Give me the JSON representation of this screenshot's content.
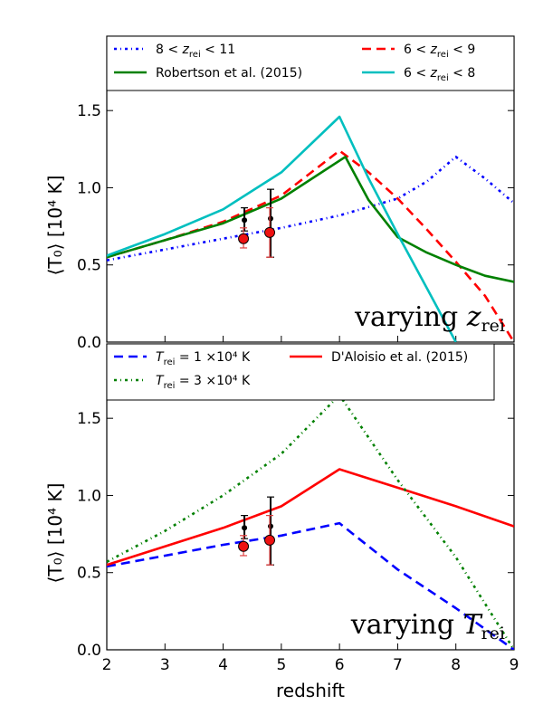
{
  "chart_data": [
    {
      "type": "line",
      "panel": "top",
      "ylabel": "⟨T₀⟩  [10⁴ K]",
      "xlim": [
        2,
        9
      ],
      "ylim": [
        0,
        1.63
      ],
      "yticks": [
        "0.0",
        "0.5",
        "1.0",
        "1.5"
      ],
      "annotation": "varying z_rei",
      "annotation_main": "varying ",
      "annotation_var": "z",
      "annotation_sub": "rei",
      "legend_position": "top",
      "series": [
        {
          "name": "8 < z_rei < 11",
          "legend": {
            "pre": "8 < ",
            "var": "z",
            "sub": "rei",
            "post": " < 11"
          },
          "style": "dashdot",
          "color": "#0000ff",
          "x": [
            2,
            3,
            4,
            5,
            6,
            7,
            7.5,
            8,
            8.5,
            9
          ],
          "y": [
            0.53,
            0.6,
            0.67,
            0.74,
            0.82,
            0.93,
            1.04,
            1.2,
            1.06,
            0.9
          ]
        },
        {
          "name": "6 < z_rei < 9",
          "legend": {
            "pre": "6 < ",
            "var": "z",
            "sub": "rei",
            "post": " < 9"
          },
          "style": "dashed",
          "color": "#ff0000",
          "x": [
            2,
            3,
            4,
            5,
            6,
            6.5,
            7,
            7.5,
            8,
            8.5,
            9
          ],
          "y": [
            0.55,
            0.66,
            0.78,
            0.95,
            1.24,
            1.1,
            0.93,
            0.73,
            0.52,
            0.3,
            0.0
          ]
        },
        {
          "name": "Robertson et al. (2015)",
          "style": "solid",
          "color": "#008000",
          "x": [
            2,
            3,
            4,
            5,
            6.1,
            6.5,
            7,
            7.5,
            8,
            8.5,
            9
          ],
          "y": [
            0.55,
            0.66,
            0.77,
            0.93,
            1.2,
            0.92,
            0.68,
            0.58,
            0.5,
            0.43,
            0.39
          ]
        },
        {
          "name": "6 < z_rei < 8",
          "legend": {
            "pre": "6 < ",
            "var": "z",
            "sub": "rei",
            "post": " < 8"
          },
          "style": "solid",
          "color": "#00bfbf",
          "x": [
            2,
            3,
            4,
            5,
            6,
            6.5,
            7,
            7.5,
            8
          ],
          "y": [
            0.56,
            0.7,
            0.86,
            1.1,
            1.46,
            1.06,
            0.7,
            0.35,
            0.0
          ]
        }
      ],
      "legend_order": [
        0,
        1,
        2,
        3
      ],
      "observations": [
        {
          "marker": "black-dot",
          "x": [
            4.35,
            4.8
          ],
          "y": [
            0.79,
            0.8
          ],
          "err_lo": [
            0.07,
            0.25
          ],
          "err_hi": [
            0.08,
            0.19
          ]
        },
        {
          "marker": "red-circle",
          "x": [
            4.35,
            4.8
          ],
          "y": [
            0.67,
            0.71
          ],
          "err_lo": [
            0.06,
            0.16
          ],
          "err_hi": [
            0.07,
            0.16
          ]
        }
      ]
    },
    {
      "type": "line",
      "panel": "bottom",
      "ylabel": "⟨T₀⟩  [10⁴ K]",
      "xlabel": "redshift",
      "xlim": [
        2,
        9
      ],
      "ylim": [
        0,
        1.63
      ],
      "xticks": [
        "2",
        "3",
        "4",
        "5",
        "6",
        "7",
        "8",
        "9"
      ],
      "yticks": [
        "0.0",
        "0.5",
        "1.0",
        "1.5"
      ],
      "annotation": "varying T_rei",
      "annotation_main": "varying ",
      "annotation_var": "T",
      "annotation_sub": "rei",
      "legend_position": "top",
      "series": [
        {
          "name": "T_rei = 1 ×10⁴ K",
          "legend": {
            "pre": "",
            "var": "T",
            "sub": "rei",
            "post": " = 1 ×10⁴ K"
          },
          "style": "dashed",
          "color": "#0000ff",
          "x": [
            2,
            3,
            4,
            5,
            6,
            7,
            8,
            9
          ],
          "y": [
            0.54,
            0.61,
            0.68,
            0.74,
            0.82,
            0.52,
            0.27,
            0.0
          ]
        },
        {
          "name": "D'Aloisio et al. (2015)",
          "style": "solid",
          "color": "#ff0000",
          "x": [
            2,
            3,
            4,
            5,
            6,
            7,
            8,
            9
          ],
          "y": [
            0.55,
            0.67,
            0.79,
            0.93,
            1.17,
            1.05,
            0.93,
            0.8
          ]
        },
        {
          "name": "T_rei = 3 ×10⁴ K",
          "legend": {
            "pre": "",
            "var": "T",
            "sub": "rei",
            "post": " = 3 ×10⁴ K"
          },
          "style": "dashdot",
          "color": "#008000",
          "x": [
            2,
            3,
            4,
            5,
            6,
            7,
            8,
            9
          ],
          "y": [
            0.57,
            0.77,
            1.0,
            1.27,
            1.65,
            1.1,
            0.6,
            0.0
          ]
        }
      ],
      "legend_order": [
        0,
        1,
        2
      ],
      "observations": [
        {
          "marker": "black-dot",
          "x": [
            4.35,
            4.8
          ],
          "y": [
            0.79,
            0.8
          ],
          "err_lo": [
            0.07,
            0.25
          ],
          "err_hi": [
            0.08,
            0.19
          ]
        },
        {
          "marker": "red-circle",
          "x": [
            4.35,
            4.8
          ],
          "y": [
            0.67,
            0.71
          ],
          "err_lo": [
            0.06,
            0.16
          ],
          "err_hi": [
            0.07,
            0.16
          ]
        }
      ]
    }
  ]
}
